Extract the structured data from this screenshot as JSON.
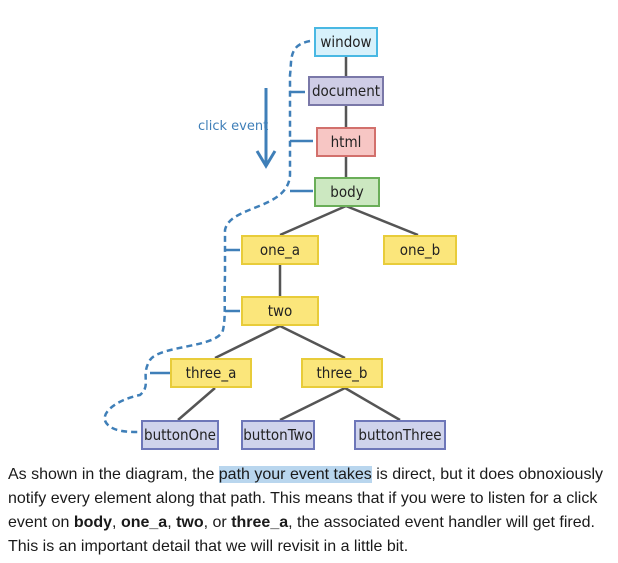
{
  "diagram": {
    "nodes": {
      "window": "window",
      "document": "document",
      "html": "html",
      "body": "body",
      "one_a": "one_a",
      "one_b": "one_b",
      "two": "two",
      "three_a": "three_a",
      "three_b": "three_b",
      "buttonOne": "buttonOne",
      "buttonTwo": "buttonTwo",
      "buttonThree": "buttonThree"
    },
    "event_label": "click event",
    "colors": {
      "path": "#3f7fb8",
      "connector": "#555555"
    }
  },
  "caption": {
    "part1": "As shown in the diagram, the ",
    "highlight": "path your event takes",
    "part2": " is direct, but it does obnoxiously notify every element along that path. This means that if you were to listen for a click event on ",
    "b1": "body",
    "sep1": ", ",
    "b2": "one_a",
    "sep2": ", ",
    "b3": "two",
    "sep3": ", or ",
    "b4": "three_a",
    "part3": ", the associated event handler will get fired. This is an important detail that we will revisit in a little bit."
  }
}
